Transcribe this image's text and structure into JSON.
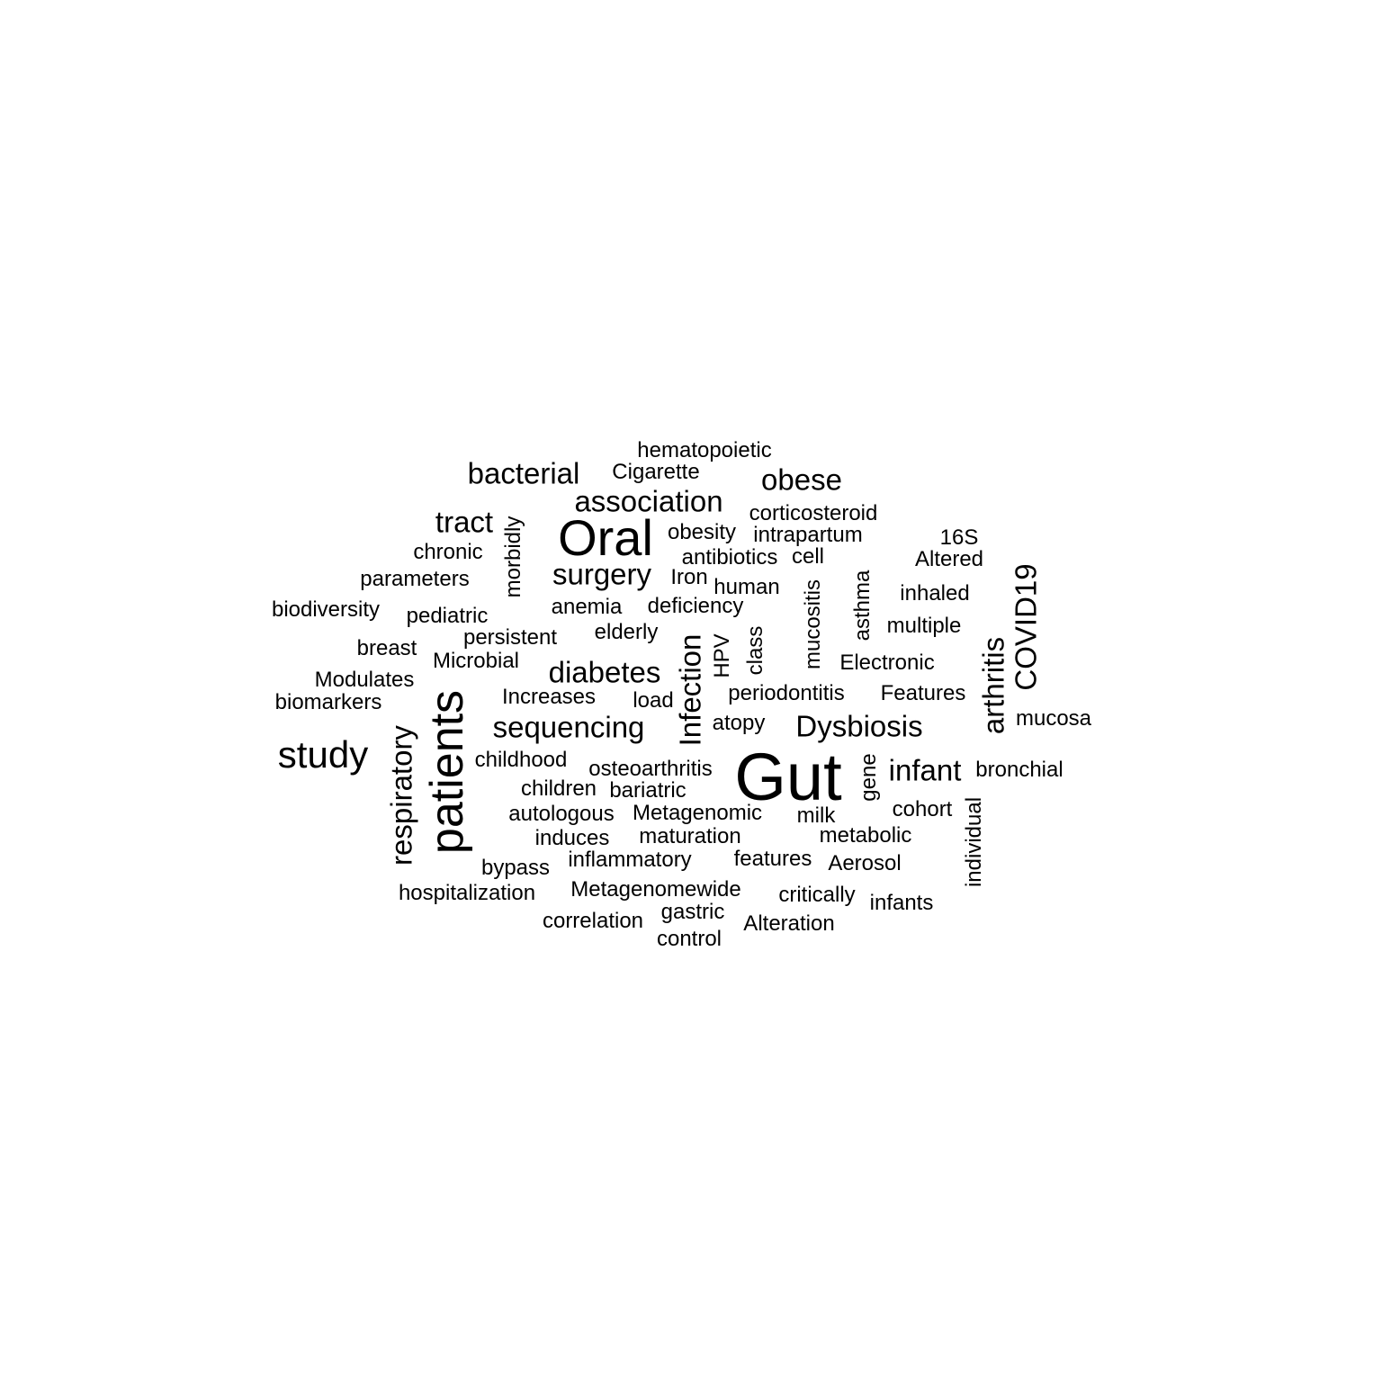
{
  "word_cloud": {
    "text_color": "#000000",
    "background_color": "#ffffff",
    "words": [
      {
        "text": "Gut"
      },
      {
        "text": "Oral"
      },
      {
        "text": "patients"
      },
      {
        "text": "study"
      },
      {
        "text": "association"
      },
      {
        "text": "bacterial"
      },
      {
        "text": "obese"
      },
      {
        "text": "tract"
      },
      {
        "text": "surgery"
      },
      {
        "text": "diabetes"
      },
      {
        "text": "sequencing"
      },
      {
        "text": "Dysbiosis"
      },
      {
        "text": "infant"
      },
      {
        "text": "Infection"
      },
      {
        "text": "arthritis"
      },
      {
        "text": "COVID19"
      },
      {
        "text": "respiratory"
      },
      {
        "text": "hematopoietic"
      },
      {
        "text": "Cigarette"
      },
      {
        "text": "corticosteroid"
      },
      {
        "text": "obesity"
      },
      {
        "text": "intrapartum"
      },
      {
        "text": "16S"
      },
      {
        "text": "chronic"
      },
      {
        "text": "morbidly"
      },
      {
        "text": "antibiotics"
      },
      {
        "text": "cell"
      },
      {
        "text": "Altered"
      },
      {
        "text": "parameters"
      },
      {
        "text": "Iron"
      },
      {
        "text": "human"
      },
      {
        "text": "inhaled"
      },
      {
        "text": "biodiversity"
      },
      {
        "text": "pediatric"
      },
      {
        "text": "anemia"
      },
      {
        "text": "deficiency"
      },
      {
        "text": "mucositis"
      },
      {
        "text": "asthma"
      },
      {
        "text": "multiple"
      },
      {
        "text": "breast"
      },
      {
        "text": "persistent"
      },
      {
        "text": "elderly"
      },
      {
        "text": "HPV"
      },
      {
        "text": "class"
      },
      {
        "text": "Electronic"
      },
      {
        "text": "Modulates"
      },
      {
        "text": "Microbial"
      },
      {
        "text": "biomarkers"
      },
      {
        "text": "Increases"
      },
      {
        "text": "load"
      },
      {
        "text": "periodontitis"
      },
      {
        "text": "Features"
      },
      {
        "text": "atopy"
      },
      {
        "text": "mucosa"
      },
      {
        "text": "childhood"
      },
      {
        "text": "osteoarthritis"
      },
      {
        "text": "gene"
      },
      {
        "text": "bronchial"
      },
      {
        "text": "children"
      },
      {
        "text": "bariatric"
      },
      {
        "text": "autologous"
      },
      {
        "text": "Metagenomic"
      },
      {
        "text": "milk"
      },
      {
        "text": "cohort"
      },
      {
        "text": "individual"
      },
      {
        "text": "induces"
      },
      {
        "text": "maturation"
      },
      {
        "text": "metabolic"
      },
      {
        "text": "bypass"
      },
      {
        "text": "inflammatory"
      },
      {
        "text": "features"
      },
      {
        "text": "Aerosol"
      },
      {
        "text": "hospitalization"
      },
      {
        "text": "Metagenomewide"
      },
      {
        "text": "critically"
      },
      {
        "text": "infants"
      },
      {
        "text": "correlation"
      },
      {
        "text": "gastric"
      },
      {
        "text": "Alteration"
      },
      {
        "text": "control"
      }
    ]
  }
}
